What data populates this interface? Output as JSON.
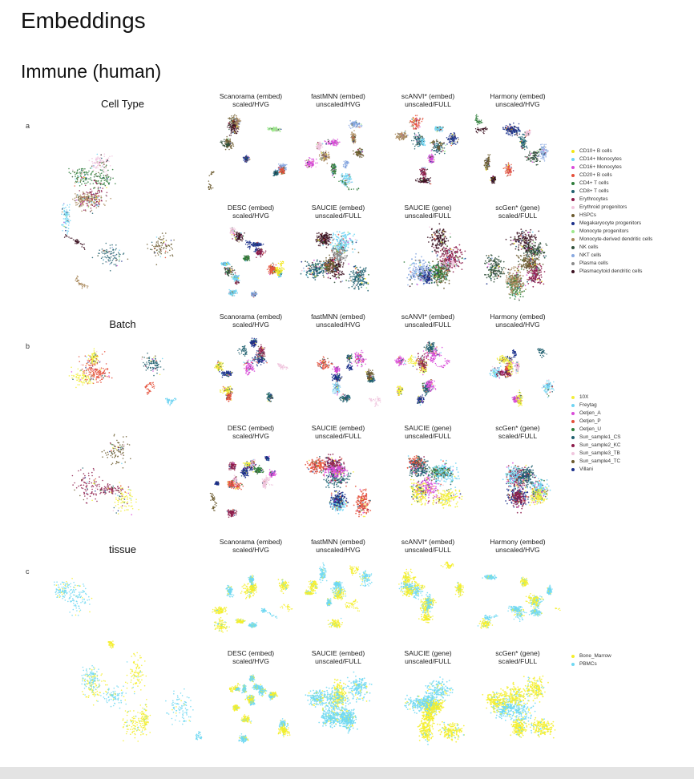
{
  "page": {
    "title": "Embeddings",
    "section": "Immune (human)"
  },
  "panels": [
    {
      "label": "a",
      "title": "Cell Type",
      "methods_top": [
        {
          "name": "Scanorama (embed)",
          "setting": "scaled/HVG"
        },
        {
          "name": "fastMNN (embed)",
          "setting": "unscaled/HVG"
        },
        {
          "name": "scANVI* (embed)",
          "setting": "unscaled/FULL"
        },
        {
          "name": "Harmony (embed)",
          "setting": "unscaled/HVG"
        }
      ],
      "methods_bottom": [
        {
          "name": "DESC (embed)",
          "setting": "scaled/HVG"
        },
        {
          "name": "SAUCIE (embed)",
          "setting": "unscaled/FULL"
        },
        {
          "name": "SAUCIE (gene)",
          "setting": "unscaled/FULL"
        },
        {
          "name": "scGen* (gene)",
          "setting": "scaled/FULL"
        }
      ],
      "legend": [
        {
          "label": "CD10+ B cells",
          "color": "#f2e614"
        },
        {
          "label": "CD14+ Monocytes",
          "color": "#6fd4f2"
        },
        {
          "label": "CD16+ Monocytes",
          "color": "#d94cd9"
        },
        {
          "label": "CD20+ B cells",
          "color": "#e5503a"
        },
        {
          "label": "CD4+ T cells",
          "color": "#2e7d3a"
        },
        {
          "label": "CD8+ T cells",
          "color": "#1f5f6e"
        },
        {
          "label": "Erythrocytes",
          "color": "#8c1b4a"
        },
        {
          "label": "Erythroid progenitors",
          "color": "#f0c6de"
        },
        {
          "label": "HSPCs",
          "color": "#6b5a2e"
        },
        {
          "label": "Megakaryocyte progenitors",
          "color": "#1a2f8a"
        },
        {
          "label": "Monocyte progenitors",
          "color": "#9ee88c"
        },
        {
          "label": "Monocyte-derived dendritic cells",
          "color": "#a8875a"
        },
        {
          "label": "NK cells",
          "color": "#2f4f3a"
        },
        {
          "label": "NKT cells",
          "color": "#88a8e0"
        },
        {
          "label": "Plasma cells",
          "color": "#8a8a8a"
        },
        {
          "label": "Plasmacytoid dendritic cells",
          "color": "#3b1020"
        }
      ]
    },
    {
      "label": "b",
      "title": "Batch",
      "methods_top": [
        {
          "name": "Scanorama (embed)",
          "setting": "scaled/HVG"
        },
        {
          "name": "fastMNN (embed)",
          "setting": "unscaled/HVG"
        },
        {
          "name": "scANVI* (embed)",
          "setting": "unscaled/FULL"
        },
        {
          "name": "Harmony (embed)",
          "setting": "unscaled/HVG"
        }
      ],
      "methods_bottom": [
        {
          "name": "DESC (embed)",
          "setting": "scaled/HVG"
        },
        {
          "name": "SAUCIE (embed)",
          "setting": "unscaled/FULL"
        },
        {
          "name": "SAUCIE (gene)",
          "setting": "unscaled/FULL"
        },
        {
          "name": "scGen* (gene)",
          "setting": "scaled/FULL"
        }
      ],
      "legend": [
        {
          "label": "10X",
          "color": "#f2ee3a"
        },
        {
          "label": "Freytag",
          "color": "#6fd4f2"
        },
        {
          "label": "Oetjen_A",
          "color": "#d94cd9"
        },
        {
          "label": "Oetjen_P",
          "color": "#e5503a"
        },
        {
          "label": "Oetjen_U",
          "color": "#2e7d3a"
        },
        {
          "label": "Sun_sample1_CS",
          "color": "#1f5f6e"
        },
        {
          "label": "Sun_sample2_KC",
          "color": "#8c1b4a"
        },
        {
          "label": "Sun_sample3_TB",
          "color": "#f0c6de"
        },
        {
          "label": "Sun_sample4_TC",
          "color": "#6b5a2e"
        },
        {
          "label": "Villani",
          "color": "#1a2f8a"
        }
      ]
    },
    {
      "label": "c",
      "title": "tissue",
      "methods_top": [
        {
          "name": "Scanorama (embed)",
          "setting": "scaled/HVG"
        },
        {
          "name": "fastMNN (embed)",
          "setting": "unscaled/HVG"
        },
        {
          "name": "scANVI* (embed)",
          "setting": "unscaled/FULL"
        },
        {
          "name": "Harmony (embed)",
          "setting": "unscaled/HVG"
        }
      ],
      "methods_bottom": [
        {
          "name": "DESC (embed)",
          "setting": "scaled/HVG"
        },
        {
          "name": "SAUCIE (embed)",
          "setting": "unscaled/FULL"
        },
        {
          "name": "SAUCIE (gene)",
          "setting": "unscaled/FULL"
        },
        {
          "name": "scGen* (gene)",
          "setting": "scaled/FULL"
        }
      ],
      "legend": [
        {
          "label": "Bone_Marrow",
          "color": "#f4ee2a"
        },
        {
          "label": "PBMCs",
          "color": "#6fd8f2"
        }
      ]
    }
  ]
}
